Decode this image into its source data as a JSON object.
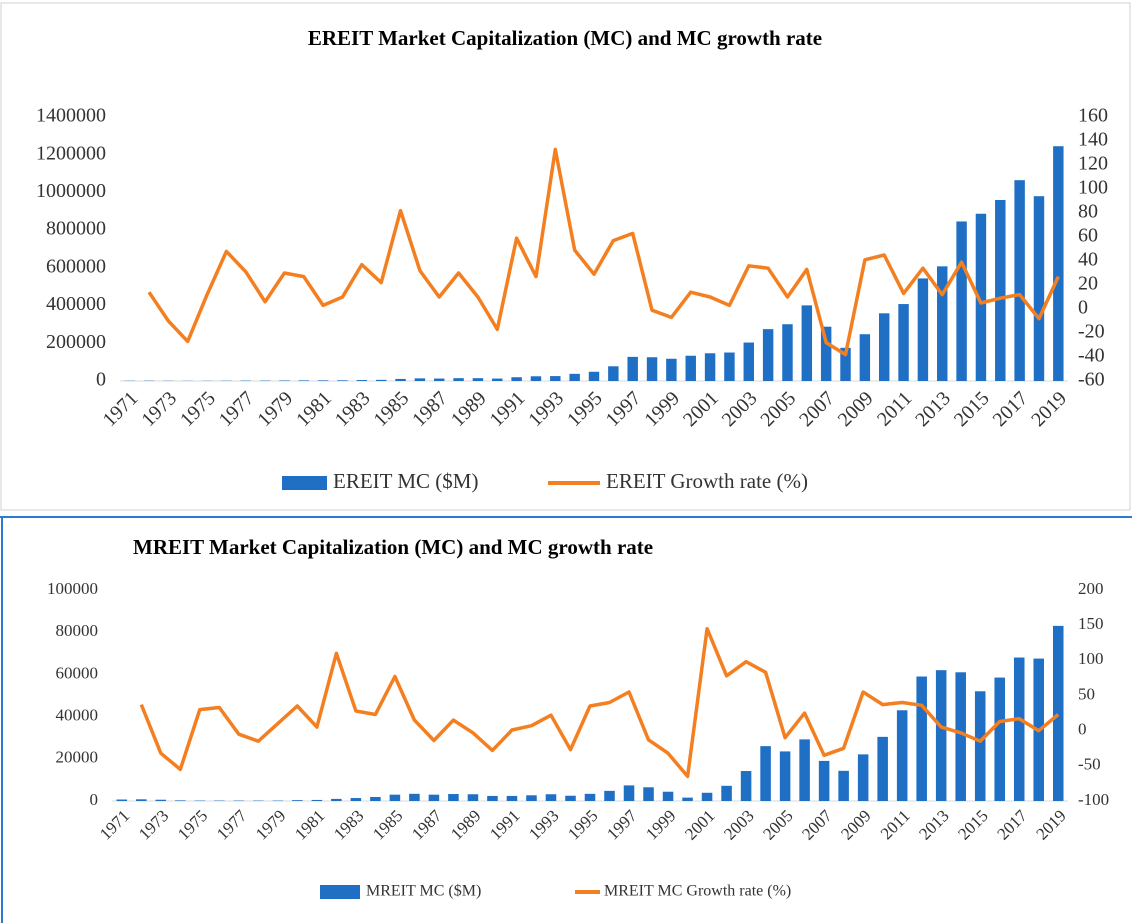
{
  "chart_data": [
    {
      "type": "combo",
      "title": "EREIT Market Capitalization (MC) and MC growth rate",
      "categories": [
        "1971",
        null,
        "1973",
        null,
        "1975",
        null,
        "1977",
        null,
        "1979",
        null,
        "1981",
        null,
        "1983",
        null,
        "1985",
        null,
        "1987",
        null,
        "1989",
        null,
        "1991",
        null,
        "1993",
        null,
        "1995",
        null,
        "1997",
        null,
        "1999",
        null,
        "2001",
        null,
        "2003",
        null,
        "2005",
        null,
        "2007",
        null,
        "2009",
        null,
        "2011",
        null,
        "2013",
        null,
        "2015",
        null,
        "2017",
        null,
        "2019"
      ],
      "series": [
        {
          "name": "EREIT MC ($M)",
          "type": "bar",
          "color": "#1f6fc5",
          "values": [
            1500,
            1700,
            1300,
            1000,
            1100,
            1600,
            2100,
            2200,
            2800,
            3300,
            3400,
            3700,
            5000,
            6000,
            11000,
            14000,
            13000,
            15000,
            15000,
            13000,
            20000,
            25000,
            26000,
            38000,
            49000,
            78000,
            128000,
            126000,
            118000,
            134000,
            147000,
            151000,
            204000,
            275000,
            301000,
            401000,
            288000,
            176000,
            248000,
            359000,
            408000,
            544000,
            608000,
            846000,
            887000,
            960000,
            1065000,
            980000,
            1245000
          ]
        },
        {
          "name": "EREIT Growth rate (%)",
          "type": "line",
          "axis": "y2",
          "color": "#f47f20",
          "values": [
            null,
            14,
            -10,
            -27,
            12,
            48,
            31,
            6,
            30,
            27,
            3,
            10,
            37,
            22,
            82,
            32,
            10,
            30,
            10,
            -17,
            59,
            27,
            133,
            49,
            29,
            57,
            63,
            -1,
            -7,
            14,
            10,
            3,
            36,
            34,
            10,
            33,
            -28,
            -38,
            41,
            45,
            13,
            34,
            12,
            39,
            5,
            9,
            12,
            -8,
            27
          ]
        }
      ],
      "ylim": [
        0,
        1400000
      ],
      "yticks": [
        0,
        200000,
        400000,
        600000,
        800000,
        1000000,
        1200000,
        1400000
      ],
      "y2lim": [
        -60,
        160
      ],
      "y2ticks": [
        -60,
        -40,
        -20,
        0,
        20,
        40,
        60,
        80,
        100,
        120,
        140,
        160
      ],
      "grid": false,
      "legend": "bottom"
    },
    {
      "type": "combo",
      "title": "MREIT Market Capitalization (MC) and MC growth rate",
      "categories": [
        "1971",
        null,
        "1973",
        null,
        "1975",
        null,
        "1977",
        null,
        "1979",
        null,
        "1981",
        null,
        "1983",
        null,
        "1985",
        null,
        "1987",
        null,
        "1989",
        null,
        "1991",
        null,
        "1993",
        null,
        "1995",
        null,
        "1997",
        null,
        "1999",
        null,
        "2001",
        null,
        "2003",
        null,
        "2005",
        null,
        "2007",
        null,
        "2009",
        null,
        "2011",
        null,
        "2013",
        null,
        "2015",
        null,
        "2017",
        null,
        "2019"
      ],
      "series": [
        {
          "name": "MREIT MC ($M)",
          "type": "bar",
          "color": "#1f6fc5",
          "values": [
            700,
            800,
            600,
            300,
            200,
            200,
            200,
            200,
            200,
            400,
            500,
            1000,
            1400,
            1900,
            3000,
            3400,
            3000,
            3300,
            3200,
            2400,
            2400,
            2700,
            3200,
            2500,
            3400,
            4800,
            7400,
            6500,
            4400,
            1600,
            3900,
            7200,
            14200,
            26000,
            23500,
            29200,
            19000,
            14300,
            22100,
            30400,
            43000,
            59000,
            62000,
            61000,
            52000,
            58500,
            68000,
            67500,
            83000
          ]
        },
        {
          "name": "MREIT MC Growth rate (%)",
          "type": "line",
          "axis": "y2",
          "color": "#f47f20",
          "values": [
            null,
            37,
            -32,
            -55,
            30,
            33,
            -5,
            -15,
            10,
            35,
            5,
            110,
            28,
            23,
            77,
            15,
            -14,
            15,
            -3,
            -28,
            1,
            7,
            22,
            -27,
            35,
            40,
            55,
            -13,
            -32,
            -65,
            145,
            78,
            98,
            83,
            -10,
            25,
            -35,
            -25,
            55,
            37,
            40,
            36,
            5,
            -3,
            -15,
            13,
            17,
            0,
            23
          ]
        }
      ],
      "ylim": [
        0,
        100000
      ],
      "yticks": [
        0,
        20000,
        40000,
        60000,
        80000,
        100000
      ],
      "y2lim": [
        -100,
        200
      ],
      "y2ticks": [
        -100,
        -50,
        0,
        50,
        100,
        150,
        200
      ],
      "grid": false,
      "legend": "bottom"
    }
  ]
}
